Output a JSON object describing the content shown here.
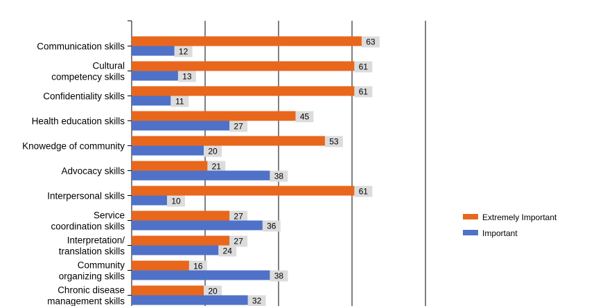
{
  "chart_data": {
    "type": "bar",
    "orientation": "horizontal",
    "categories": [
      [
        "Communication skills"
      ],
      [
        "Cultural",
        "competency skills"
      ],
      [
        "Confidentiality skills"
      ],
      [
        "Health education skills"
      ],
      [
        "Knowedge of community"
      ],
      [
        "Advocacy skills"
      ],
      [
        "Interpersonal skills"
      ],
      [
        "Service",
        "coordination skills"
      ],
      [
        "Interpretation/",
        "translation skills"
      ],
      [
        "Community",
        "organizing skills"
      ],
      [
        "Chronic disease",
        "management skills"
      ]
    ],
    "series": [
      {
        "name": "Extremely Important",
        "color": "#E8671C",
        "values": [
          63,
          61,
          61,
          45,
          53,
          21,
          61,
          27,
          27,
          16,
          20
        ]
      },
      {
        "name": "Important",
        "color": "#4F72C8",
        "values": [
          12,
          13,
          11,
          27,
          20,
          38,
          10,
          36,
          24,
          38,
          32
        ]
      }
    ],
    "xlim": [
      0,
      80
    ],
    "gridlines": [
      20,
      40,
      60,
      80
    ],
    "grid": true,
    "legend_position": "right",
    "title": "",
    "xlabel": "",
    "ylabel": ""
  }
}
